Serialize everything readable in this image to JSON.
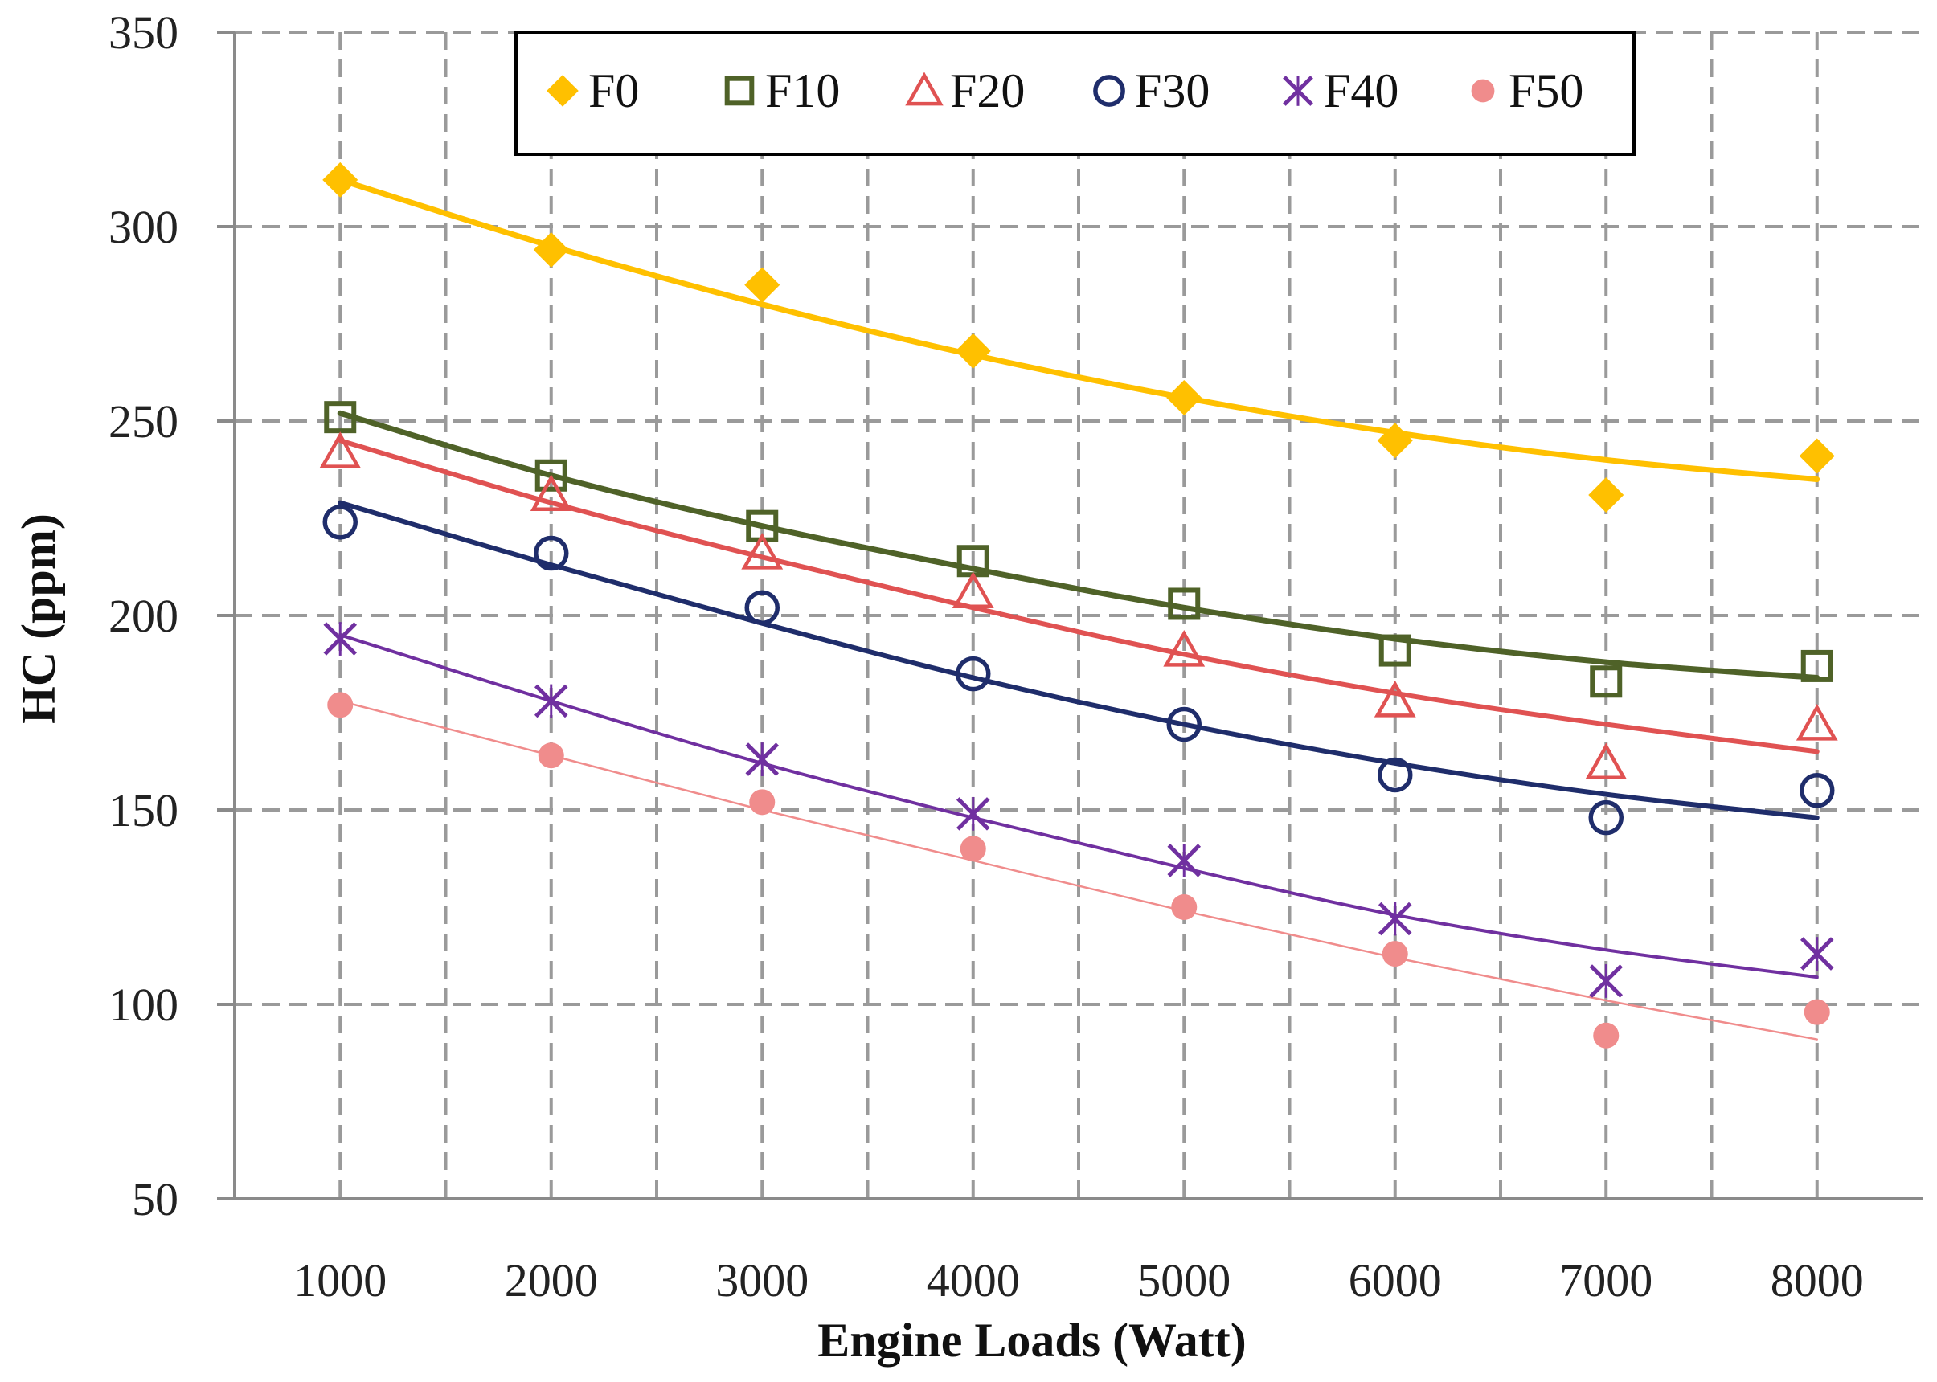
{
  "chart_data": {
    "type": "scatter",
    "title": "",
    "xlabel": "Engine Loads (Watt)",
    "ylabel": "HC (ppm)",
    "x": [
      1000,
      2000,
      3000,
      4000,
      5000,
      6000,
      7000,
      8000
    ],
    "x_ticks": [
      "1000",
      "2000",
      "3000",
      "4000",
      "5000",
      "6000",
      "7000",
      "8000"
    ],
    "y_ticks": [
      "50",
      "100",
      "150",
      "200",
      "250",
      "300",
      "350"
    ],
    "xlim": [
      500,
      8500
    ],
    "ylim": [
      50,
      350
    ],
    "grid": true,
    "legend_position": "top-center",
    "series": [
      {
        "name": "F0",
        "marker": "diamond",
        "color": "#FFC000",
        "values": [
          312,
          294,
          285,
          268,
          256,
          245,
          231,
          241
        ],
        "trend": [
          312,
          295,
          280,
          267,
          256,
          247,
          240,
          235
        ]
      },
      {
        "name": "F10",
        "marker": "square",
        "color": "#4F6228",
        "values": [
          251,
          236,
          223,
          214,
          203,
          191,
          183,
          187
        ],
        "trend": [
          252,
          236,
          223,
          212,
          202,
          194,
          188,
          184
        ]
      },
      {
        "name": "F20",
        "marker": "triangle",
        "color": "#E05252",
        "values": [
          242,
          231,
          216,
          206,
          191,
          178,
          162,
          172
        ],
        "trend": [
          245,
          229,
          215,
          202,
          190,
          180,
          172,
          165
        ]
      },
      {
        "name": "F30",
        "marker": "circle",
        "color": "#1F2D6B",
        "values": [
          224,
          216,
          202,
          185,
          172,
          159,
          148,
          155
        ],
        "trend": [
          229,
          213,
          198,
          184,
          172,
          162,
          154,
          148
        ]
      },
      {
        "name": "F40",
        "marker": "x",
        "color": "#7030A0",
        "values": [
          194,
          178,
          163,
          149,
          137,
          122,
          106,
          113
        ],
        "trend": [
          195,
          178,
          162,
          148,
          135,
          123,
          114,
          107
        ]
      },
      {
        "name": "F50",
        "marker": "dot",
        "color": "#F08C8C",
        "values": [
          177,
          164,
          152,
          140,
          125,
          113,
          92,
          98
        ],
        "trend": [
          178,
          164,
          150,
          137,
          124,
          112,
          101,
          91
        ]
      }
    ]
  }
}
